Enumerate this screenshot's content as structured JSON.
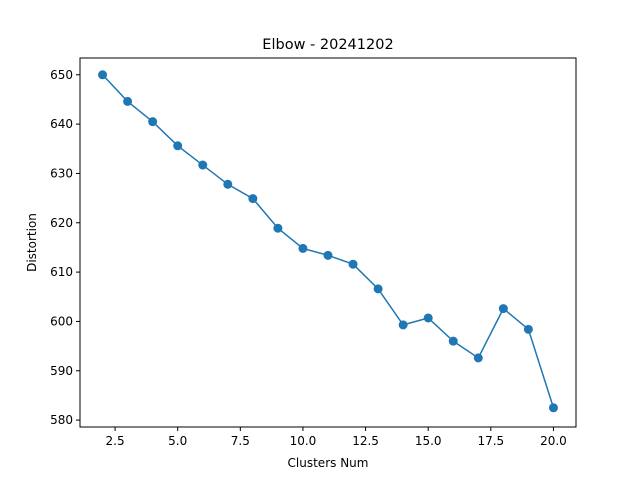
{
  "chart_data": {
    "type": "line",
    "title": "Elbow - 20241202",
    "xlabel": "Clusters Num",
    "ylabel": "Distortion",
    "xlim": [
      1.1,
      20.9
    ],
    "ylim": [
      578.6,
      653.4
    ],
    "xticks": [
      2.5,
      5.0,
      7.5,
      10.0,
      12.5,
      15.0,
      17.5,
      20.0
    ],
    "xtick_labels": [
      "2.5",
      "5.0",
      "7.5",
      "10.0",
      "12.5",
      "15.0",
      "17.5",
      "20.0"
    ],
    "yticks": [
      580,
      590,
      600,
      610,
      620,
      630,
      640,
      650
    ],
    "ytick_labels": [
      "580",
      "590",
      "600",
      "610",
      "620",
      "630",
      "640",
      "650"
    ],
    "grid": false,
    "color": "#1f77b4",
    "marker": "circle",
    "x": [
      2,
      3,
      4,
      5,
      6,
      7,
      8,
      9,
      10,
      11,
      12,
      13,
      14,
      15,
      16,
      17,
      18,
      19,
      20
    ],
    "values": [
      650.0,
      644.6,
      640.5,
      635.6,
      631.7,
      627.8,
      624.9,
      618.9,
      614.8,
      613.4,
      611.6,
      606.6,
      599.3,
      600.7,
      596.0,
      592.6,
      602.6,
      598.4,
      582.5
    ]
  }
}
